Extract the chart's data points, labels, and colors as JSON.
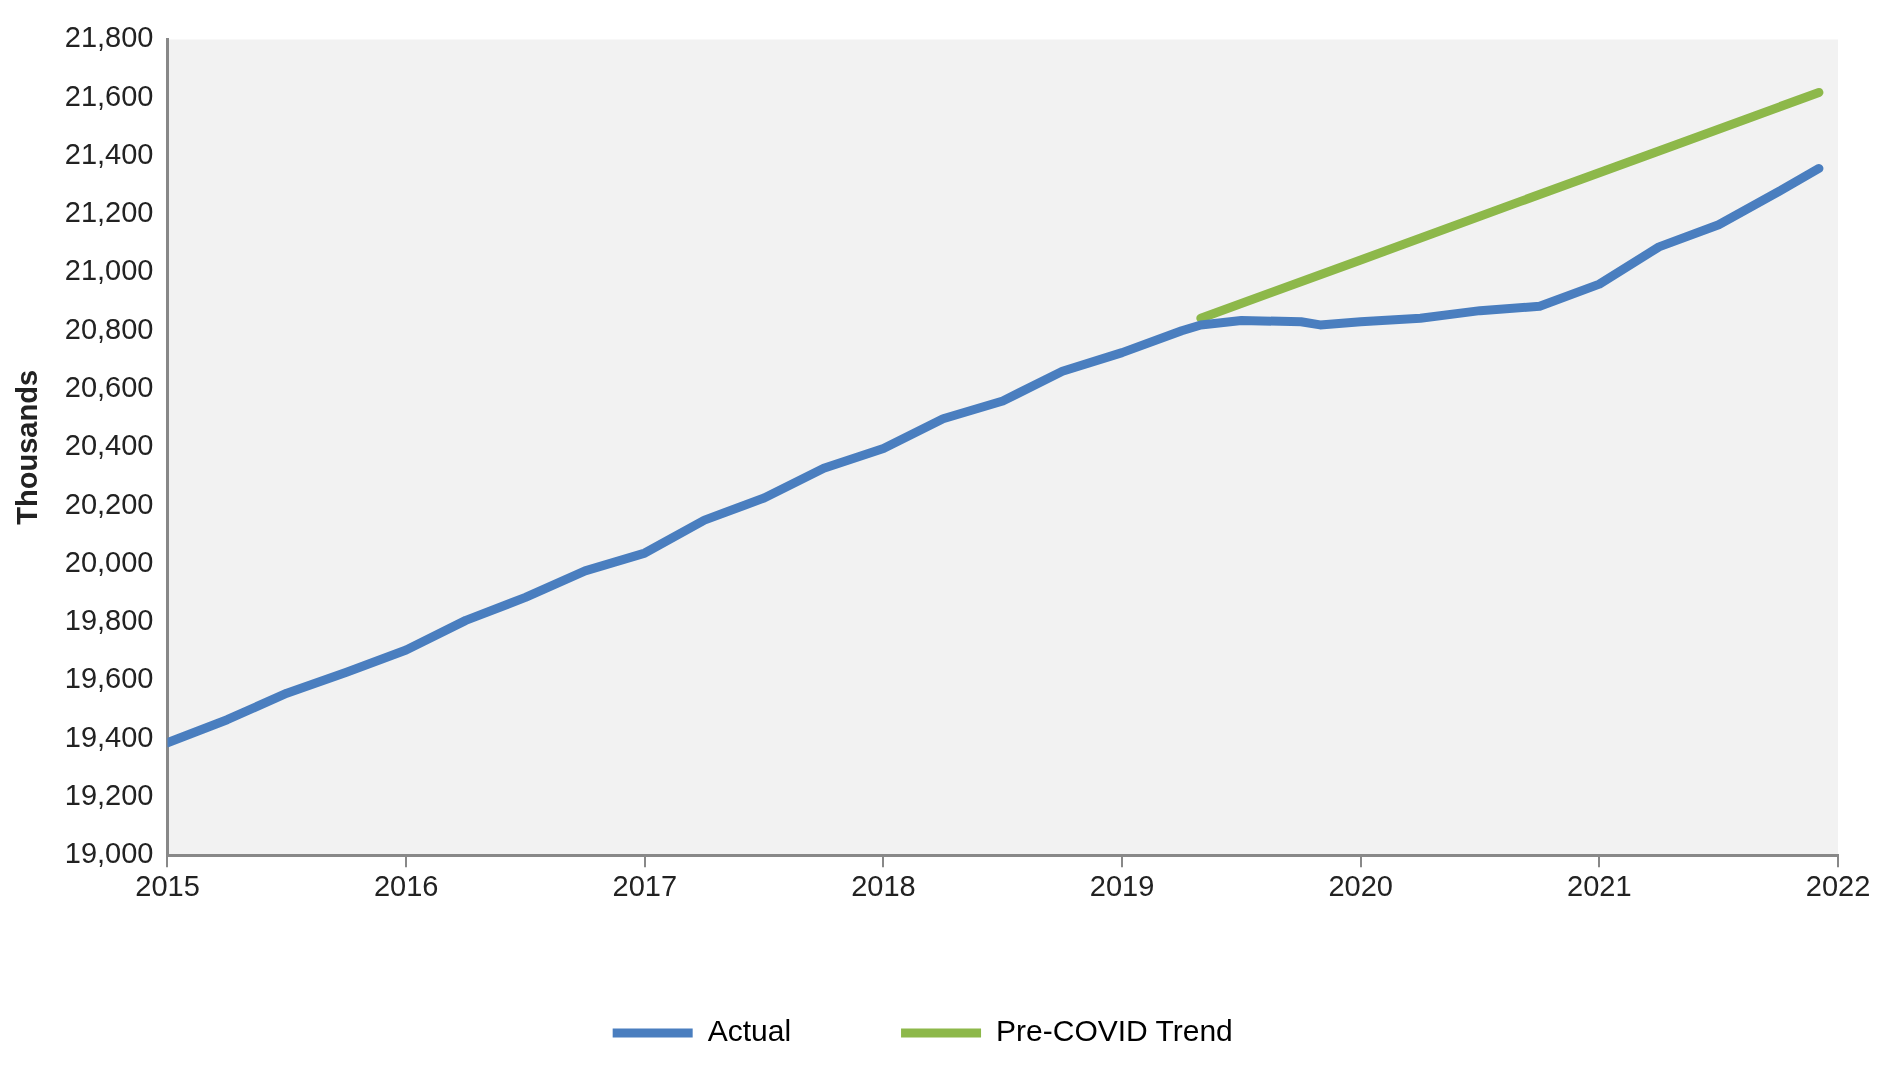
{
  "chart_data": {
    "type": "line",
    "ylabel": "Thousands",
    "xlim": [
      2015,
      2022
    ],
    "xticks": [
      2015,
      2016,
      2017,
      2018,
      2019,
      2020,
      2021,
      2022
    ],
    "ylim": [
      19000,
      21800
    ],
    "yticks": [
      {
        "value": 19000,
        "label": "19,000"
      },
      {
        "value": 19200,
        "label": "19,200"
      },
      {
        "value": 19400,
        "label": "19,400"
      },
      {
        "value": 19600,
        "label": "19,600"
      },
      {
        "value": 19800,
        "label": "19,800"
      },
      {
        "value": 20000,
        "label": "20,000"
      },
      {
        "value": 20200,
        "label": "20,200"
      },
      {
        "value": 20400,
        "label": "20,400"
      },
      {
        "value": 20600,
        "label": "20,600"
      },
      {
        "value": 20800,
        "label": "20,800"
      },
      {
        "value": 21000,
        "label": "21,000"
      },
      {
        "value": 21200,
        "label": "21,200"
      },
      {
        "value": 21400,
        "label": "21,400"
      },
      {
        "value": 21600,
        "label": "21,600"
      },
      {
        "value": 21800,
        "label": "21,800"
      }
    ],
    "grid": false,
    "legend": "bottom",
    "marker": "none",
    "line_style": "solid",
    "series": [
      {
        "name": "Actual",
        "color": "#4a7ebf",
        "x": [
          2015,
          2015.25,
          2015.5,
          2015.75,
          2016,
          2016.25,
          2016.5,
          2016.75,
          2017,
          2017.25,
          2017.5,
          2017.75,
          2018,
          2018.25,
          2018.5,
          2018.75,
          2019,
          2019.25,
          2019.33,
          2019.5,
          2019.75,
          2019.83,
          2020,
          2020.25,
          2020.5,
          2020.75,
          2021,
          2021.25,
          2021.5,
          2021.75,
          2021.92
        ],
        "values": [
          19386,
          19465,
          19556,
          19628,
          19704,
          19806,
          19885,
          19976,
          20037,
          20150,
          20226,
          20328,
          20396,
          20498,
          20559,
          20661,
          20725,
          20800,
          20820,
          20835,
          20831,
          20820,
          20831,
          20843,
          20869,
          20884,
          20960,
          21088,
          21164,
          21277,
          21357
        ]
      },
      {
        "name": "Pre-COVID Trend",
        "color": "#8db84a",
        "x": [
          2019.33,
          2020,
          2020.67,
          2021.33,
          2021.92
        ],
        "values": [
          20843,
          21043,
          21244,
          21441,
          21618
        ]
      }
    ]
  }
}
